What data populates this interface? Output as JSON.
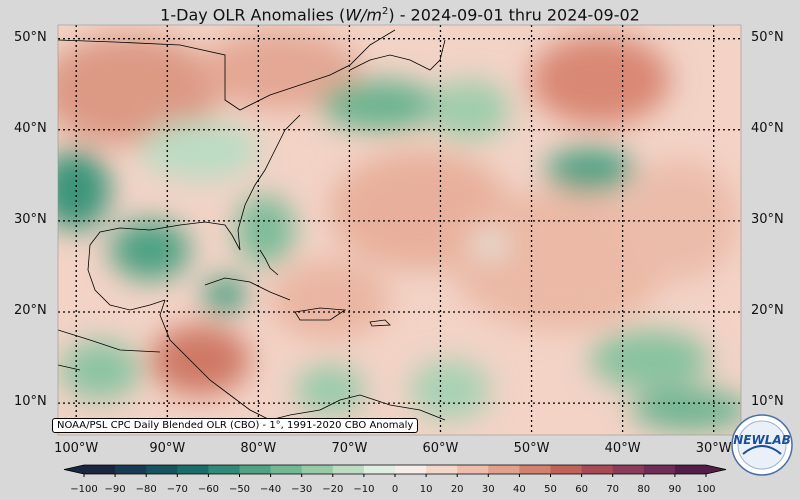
{
  "title": {
    "prefix": "1-Day OLR Anomalies (",
    "unit_base": "W/m",
    "unit_exp": "2",
    "suffix": ") - 2024-09-01 thru 2024-09-02"
  },
  "map": {
    "lon_range": [
      -102,
      -27
    ],
    "lat_range": [
      6.5,
      51.5
    ],
    "lat_labels": [
      "50°N",
      "40°N",
      "30°N",
      "20°N",
      "10°N"
    ],
    "lat_values": [
      50,
      40,
      30,
      20,
      10
    ],
    "lon_labels": [
      "100°W",
      "90°W",
      "80°W",
      "70°W",
      "60°W",
      "50°W",
      "40°W",
      "30°W"
    ],
    "lon_values": [
      -100,
      -90,
      -80,
      -70,
      -60,
      -50,
      -40,
      -30
    ]
  },
  "credit": "NOAA/PSL CPC Daily Blended OLR (CBO) - 1°, 1991-2020 CBO Anomaly",
  "colorbar": {
    "ticks": [
      "−100",
      "−90",
      "−80",
      "−70",
      "−60",
      "−50",
      "−40",
      "−30",
      "−20",
      "−10",
      "0",
      "10",
      "20",
      "30",
      "40",
      "50",
      "60",
      "70",
      "80",
      "90",
      "100"
    ],
    "colors": [
      "#1a2540",
      "#193a55",
      "#15545f",
      "#1a6e6a",
      "#2f8a78",
      "#4fa284",
      "#72b895",
      "#97cba8",
      "#bcdcc3",
      "#e0ede3",
      "#f6ecea",
      "#f3d7cb",
      "#eebdab",
      "#e3a08d",
      "#d3806f",
      "#c06257",
      "#a84a56",
      "#8e3a5a",
      "#712b57",
      "#541d47"
    ]
  },
  "logo": {
    "text": "NEWLAB",
    "icon": "noaa-logo-icon"
  }
}
